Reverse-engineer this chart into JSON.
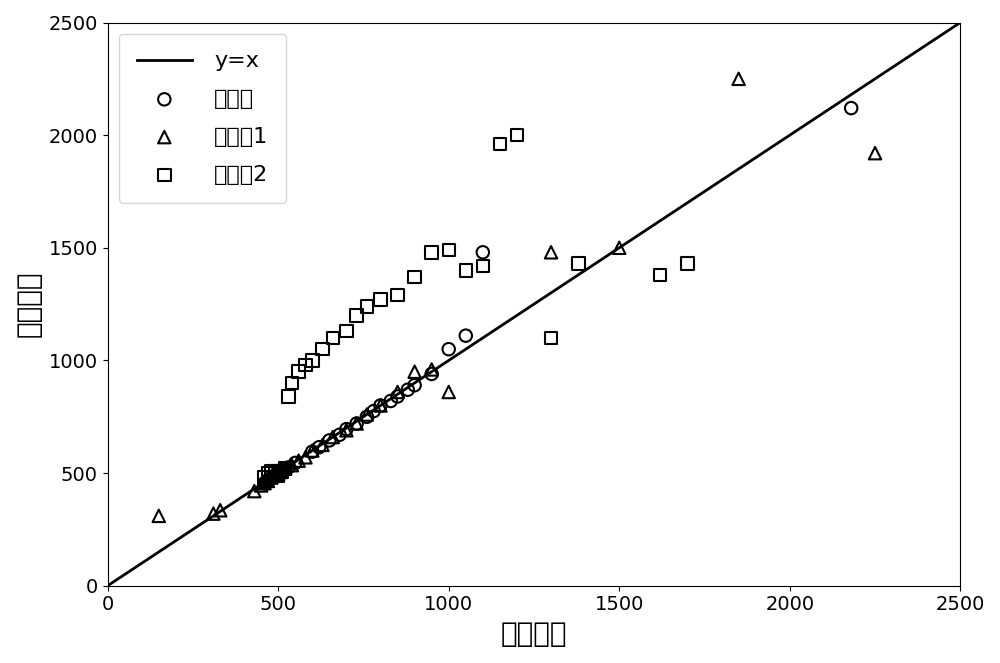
{
  "title": "",
  "xlabel": "真实寿命",
  "ylabel": "预测寿命",
  "xlim": [
    0,
    2500
  ],
  "ylim": [
    0,
    2500
  ],
  "xticks": [
    0,
    500,
    1000,
    1500,
    2000,
    2500
  ],
  "yticks": [
    0,
    500,
    1000,
    1500,
    2000,
    2500
  ],
  "line_color": "black",
  "line_label": "y=x",
  "train_x": [
    460,
    465,
    470,
    472,
    475,
    478,
    480,
    482,
    485,
    488,
    490,
    492,
    495,
    498,
    500,
    502,
    505,
    508,
    510,
    512,
    515,
    520,
    530,
    550,
    600,
    620,
    650,
    680,
    700,
    730,
    760,
    780,
    800,
    830,
    850,
    880,
    900,
    950,
    1000,
    1050,
    1100,
    2180
  ],
  "train_y": [
    455,
    460,
    468,
    470,
    472,
    475,
    478,
    480,
    482,
    485,
    488,
    490,
    492,
    495,
    498,
    500,
    502,
    505,
    510,
    512,
    515,
    520,
    525,
    545,
    595,
    615,
    645,
    670,
    695,
    720,
    750,
    775,
    800,
    820,
    840,
    870,
    890,
    940,
    1050,
    1110,
    1480,
    2120
  ],
  "test1_x": [
    150,
    310,
    330,
    430,
    450,
    460,
    470,
    480,
    490,
    500,
    510,
    520,
    540,
    560,
    580,
    600,
    630,
    660,
    700,
    730,
    760,
    800,
    850,
    900,
    950,
    1000,
    1300,
    1500,
    1850,
    2250
  ],
  "test1_y": [
    310,
    320,
    335,
    420,
    445,
    455,
    465,
    480,
    490,
    495,
    505,
    520,
    535,
    555,
    570,
    600,
    625,
    660,
    690,
    720,
    760,
    800,
    860,
    950,
    960,
    860,
    1480,
    1500,
    2250,
    1920
  ],
  "test2_x": [
    460,
    470,
    480,
    490,
    500,
    510,
    520,
    530,
    540,
    560,
    580,
    600,
    630,
    660,
    700,
    730,
    760,
    800,
    850,
    900,
    950,
    1000,
    1050,
    1100,
    1150,
    1200,
    1300,
    1380,
    1620,
    1700
  ],
  "test2_y": [
    480,
    500,
    510,
    510,
    490,
    510,
    520,
    840,
    900,
    950,
    980,
    1000,
    1050,
    1100,
    1130,
    1200,
    1240,
    1270,
    1290,
    1370,
    1480,
    1490,
    1400,
    1420,
    1960,
    2000,
    1100,
    1430,
    1380,
    1430
  ],
  "marker_size": 80,
  "linewidth": 2.0,
  "legend_fontsize": 16,
  "axis_label_fontsize": 20
}
